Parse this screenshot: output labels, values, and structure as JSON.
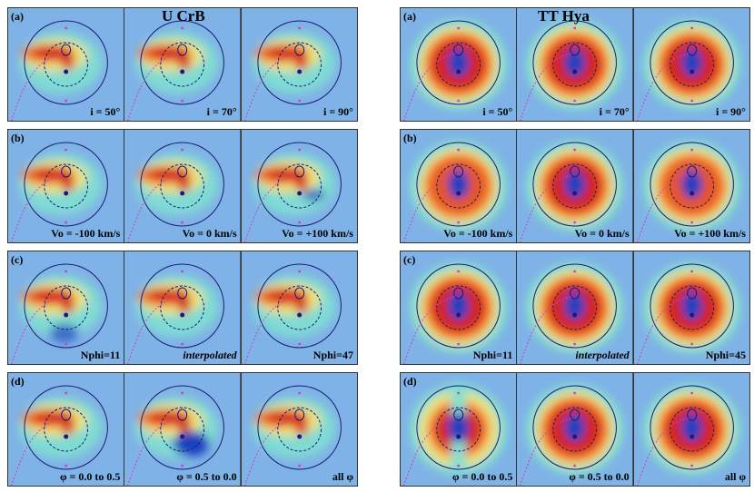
{
  "left": {
    "star": "U CrB",
    "rows": [
      {
        "label": "(a)",
        "panels": [
          "i = 50°",
          "i = 70°",
          "i = 90°"
        ],
        "italic": [
          false,
          false,
          false
        ]
      },
      {
        "label": "(b)",
        "panels": [
          "Vo = -100 km/s",
          "Vo = 0 km/s",
          "Vo = +100 km/s"
        ],
        "italic": [
          false,
          false,
          false
        ]
      },
      {
        "label": "(c)",
        "panels": [
          "Nphi=11",
          "interpolated",
          "Nphi=47"
        ],
        "italic": [
          false,
          true,
          false
        ]
      },
      {
        "label": "(d)",
        "panels": [
          "φ = 0.0 to 0.5",
          "φ = 0.5 to 0.0",
          "all φ"
        ],
        "italic": [
          false,
          false,
          false
        ]
      }
    ]
  },
  "right": {
    "star": "TT Hya",
    "rows": [
      {
        "label": "(a)",
        "panels": [
          "i = 50°",
          "i = 70°",
          "i = 90°"
        ],
        "italic": [
          false,
          false,
          false
        ]
      },
      {
        "label": "(b)",
        "panels": [
          "Vo = -100 km/s",
          "Vo = 0 km/s",
          "Vo = +100 km/s"
        ],
        "italic": [
          false,
          false,
          false
        ]
      },
      {
        "label": "(c)",
        "panels": [
          "Nphi=11",
          "interpolated",
          "Nphi=45"
        ],
        "italic": [
          false,
          true,
          false
        ]
      },
      {
        "label": "(d)",
        "panels": [
          "φ = 0.0 to 0.5",
          "φ = 0.5 to 0.0",
          "all φ"
        ],
        "italic": [
          false,
          false,
          false
        ]
      }
    ]
  },
  "colors": {
    "background_blue": "#7fb2e6",
    "cyan": "#7fe0d0",
    "yellow": "#f1e27a",
    "orange": "#f07a2a",
    "red": "#d62014",
    "dark_blue": "#1f3fbf",
    "circle": "#1a1a7a",
    "stream": "#cc3fbf"
  }
}
